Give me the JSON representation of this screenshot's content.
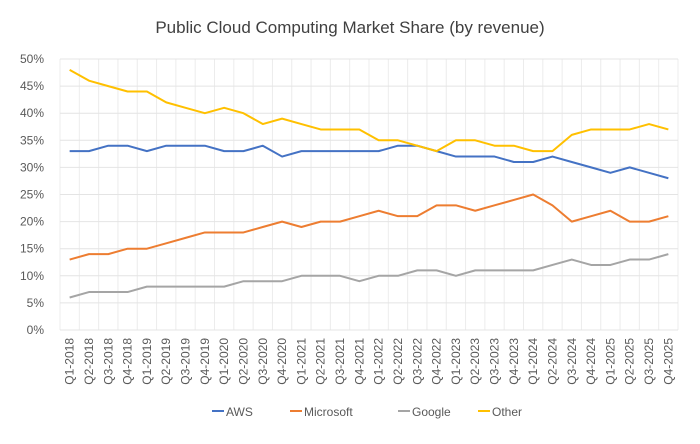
{
  "chart_data": {
    "type": "line",
    "title": "Public Cloud Computing Market Share (by revenue)",
    "xlabel": "",
    "ylabel": "",
    "ylim": [
      0,
      50
    ],
    "yticks": [
      "0%",
      "5%",
      "10%",
      "15%",
      "20%",
      "25%",
      "30%",
      "35%",
      "40%",
      "45%",
      "50%"
    ],
    "grid": true,
    "legend": "bottom",
    "categories": [
      "Q1-2018",
      "Q2-2018",
      "Q3-2018",
      "Q4-2018",
      "Q1-2019",
      "Q2-2019",
      "Q3-2019",
      "Q4-2019",
      "Q1-2020",
      "Q2-2020",
      "Q3-2020",
      "Q4-2020",
      "Q1-2021",
      "Q2-2021",
      "Q3-2021",
      "Q4-2021",
      "Q1-2022",
      "Q2-2022",
      "Q3-2022",
      "Q4-2022",
      "Q1-2023",
      "Q2-2023",
      "Q3-2023",
      "Q4-2023",
      "Q1-2024",
      "Q2-2024",
      "Q3-2024",
      "Q4-2024",
      "Q1-2025",
      "Q2-2025",
      "Q3-2025",
      "Q4-2025"
    ],
    "series": [
      {
        "name": "AWS",
        "color": "#4472C4",
        "values": [
          33,
          33,
          34,
          34,
          33,
          34,
          34,
          34,
          33,
          33,
          34,
          32,
          33,
          33,
          33,
          33,
          33,
          34,
          34,
          33,
          32,
          32,
          32,
          31,
          31,
          32,
          31,
          30,
          29,
          30,
          29,
          28
        ]
      },
      {
        "name": "Microsoft",
        "color": "#ED7D31",
        "values": [
          13,
          14,
          14,
          15,
          15,
          16,
          17,
          18,
          18,
          18,
          19,
          20,
          19,
          20,
          20,
          21,
          22,
          21,
          21,
          23,
          23,
          22,
          23,
          24,
          25,
          23,
          20,
          21,
          22,
          20,
          20,
          21
        ]
      },
      {
        "name": "Google",
        "color": "#A5A5A5",
        "values": [
          6,
          7,
          7,
          7,
          8,
          8,
          8,
          8,
          8,
          9,
          9,
          9,
          10,
          10,
          10,
          9,
          10,
          10,
          11,
          11,
          10,
          11,
          11,
          11,
          11,
          12,
          13,
          12,
          12,
          13,
          13,
          14
        ]
      },
      {
        "name": "Other",
        "color": "#FFC000",
        "values": [
          48,
          46,
          45,
          44,
          44,
          42,
          41,
          40,
          41,
          40,
          38,
          39,
          38,
          37,
          37,
          37,
          35,
          35,
          34,
          33,
          35,
          35,
          34,
          34,
          33,
          33,
          36,
          37,
          37,
          37,
          38,
          37
        ]
      }
    ]
  }
}
